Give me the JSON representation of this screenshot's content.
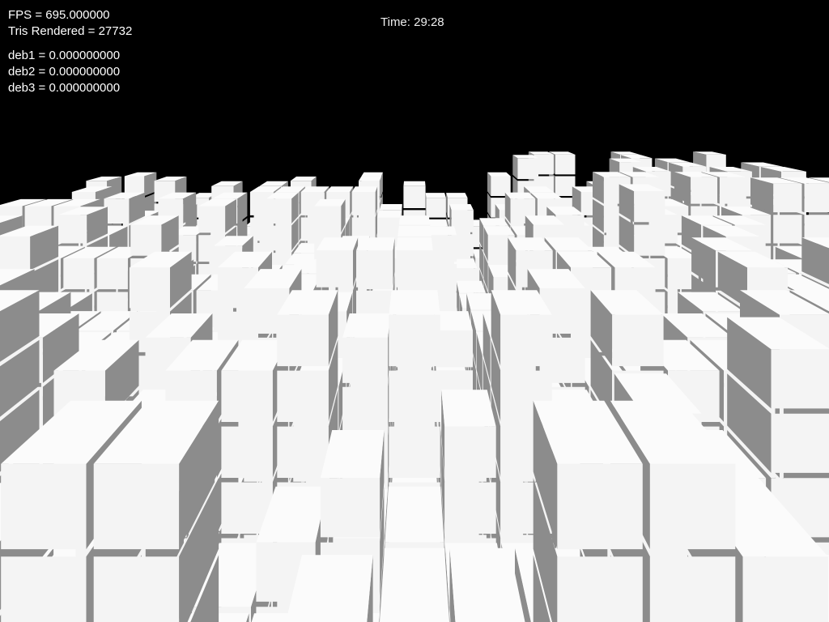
{
  "hud": {
    "fps": "FPS = 695.000000",
    "tris": "Tris Rendered = 27732",
    "deb1": "deb1 = 0.000000000",
    "deb2": "deb2 = 0.000000000",
    "deb3": "deb3 = 0.000000000",
    "time": "Time: 29:28"
  },
  "colors": {
    "background": "#000000",
    "cube_front": "#f4f4f4",
    "cube_top": "#fbfbfb",
    "cube_side": "#8c8c8c",
    "text": "#ffffff"
  }
}
